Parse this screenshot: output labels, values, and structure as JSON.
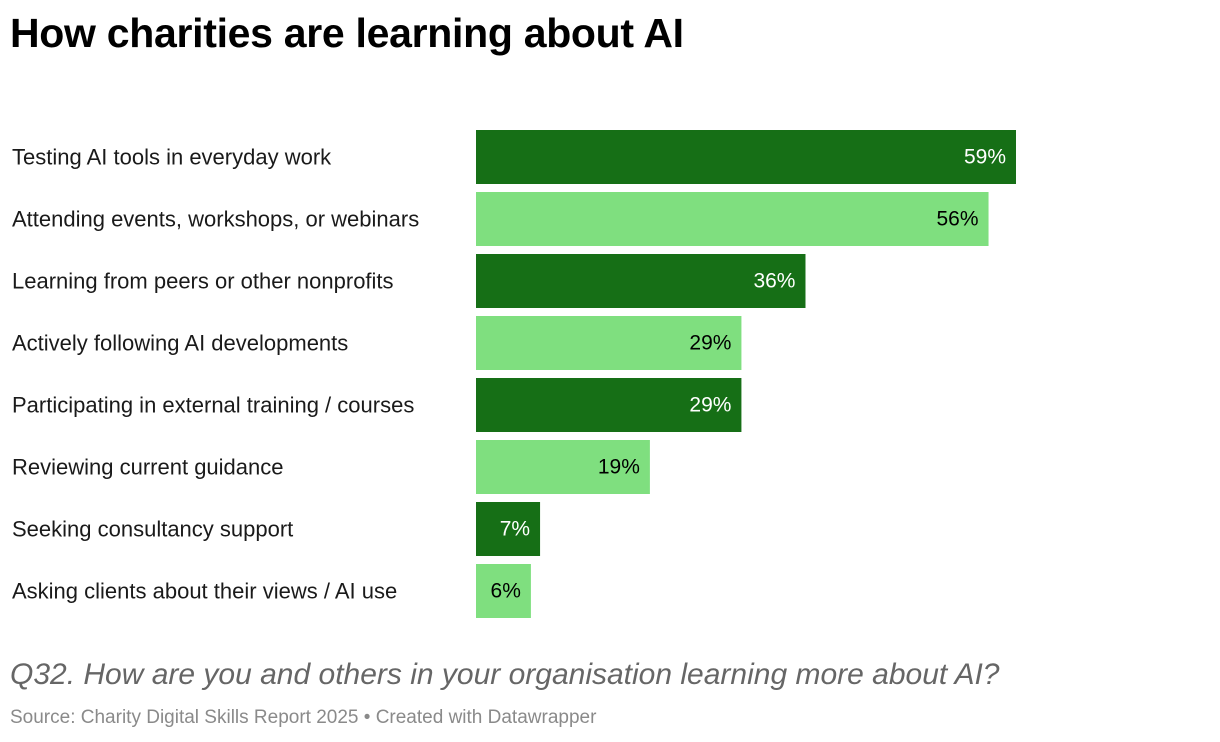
{
  "title": "How charities are learning about AI",
  "question": "Q32. How are you and others in your organisation learning more about AI?",
  "source_line": "Source: Charity Digital Skills Report 2025 • Created with Datawrapper",
  "colors": {
    "dark_green": "#166f16",
    "light_green": "#7fdf7f",
    "label_on_dark": "#ffffff",
    "label_on_light": "#000000"
  },
  "chart_data": {
    "type": "bar",
    "orientation": "horizontal",
    "title": "How charities are learning about AI",
    "categories": [
      "Testing AI tools in everyday work",
      "Attending events, workshops, or webinars",
      "Learning from peers or other nonprofits",
      "Actively following AI developments",
      "Participating in external training / courses",
      "Reviewing current guidance",
      "Seeking consultancy support",
      "Asking clients about their views / AI use"
    ],
    "values": [
      59,
      56,
      36,
      29,
      29,
      19,
      7,
      6
    ],
    "value_labels": [
      "59%",
      "56%",
      "36%",
      "29%",
      "29%",
      "19%",
      "7%",
      "6%"
    ],
    "bar_colors": [
      "#166f16",
      "#7fdf7f",
      "#166f16",
      "#7fdf7f",
      "#166f16",
      "#7fdf7f",
      "#166f16",
      "#7fdf7f"
    ],
    "xlim": [
      0,
      59
    ],
    "grid": false,
    "legend": "none"
  }
}
